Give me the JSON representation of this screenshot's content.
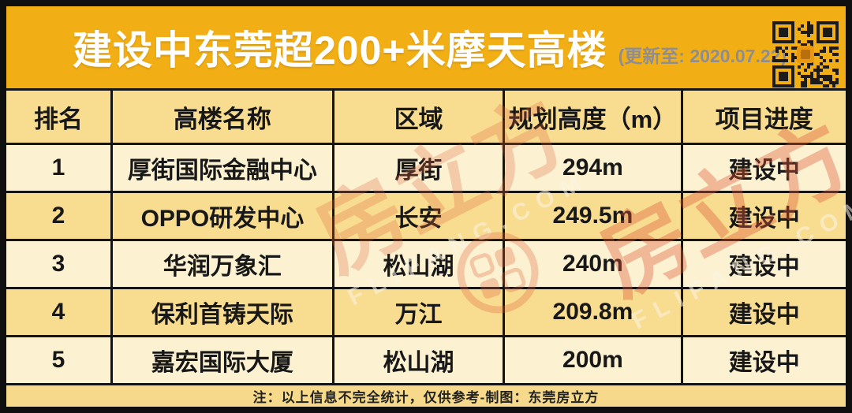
{
  "title": {
    "text": "建设中东莞超200+米摩天高楼",
    "updated": "(更新至: 2020.07.22)"
  },
  "icons": {
    "qr": "qr-code",
    "watermark_logo": "fangcube-circle-logo"
  },
  "table": {
    "headers": [
      "排名",
      "高楼名称",
      "区域",
      "规划高度（m）",
      "项目进度"
    ],
    "rows": [
      {
        "rank": "1",
        "name": "厚街国际金融中心",
        "area": "厚街",
        "height": "294m",
        "status": "建设中"
      },
      {
        "rank": "2",
        "name": "OPPO研发中心",
        "area": "长安",
        "height": "249.5m",
        "status": "建设中"
      },
      {
        "rank": "3",
        "name": "华润万象汇",
        "area": "松山湖",
        "height": "240m",
        "status": "建设中"
      },
      {
        "rank": "4",
        "name": "保利首铸天际",
        "area": "万江",
        "height": "209.8m",
        "status": "建设中"
      },
      {
        "rank": "5",
        "name": "嘉宏国际大厦",
        "area": "松山湖",
        "height": "200m",
        "status": "建设中"
      }
    ]
  },
  "footer": {
    "note": "注：以上信息不完全统计，仅供参考-制图：东莞房立方"
  },
  "watermark": {
    "brand": "房立方",
    "domain_text": "FLIFANG.COM"
  },
  "colors": {
    "title_bar": "#F2AF15",
    "header_row": "#F8DC90",
    "row_odd": "#FCF2D2",
    "row_even": "#F8DC90",
    "note_bar": "#F6D98A",
    "border": "#141414",
    "title_text": "#FFFFFF",
    "updated_text": "#8D8D95",
    "watermark_accent": "#DE623A",
    "qr_center": "#EA9812"
  },
  "chart_data": {
    "type": "table",
    "title": "建设中东莞超200+米摩天高楼",
    "updated": "2020.07.22",
    "columns": [
      "排名",
      "高楼名称",
      "区域",
      "规划高度（m）",
      "项目进度"
    ],
    "rows": [
      [
        "1",
        "厚街国际金融中心",
        "厚街",
        "294m",
        "建设中"
      ],
      [
        "2",
        "OPPO研发中心",
        "长安",
        "249.5m",
        "建设中"
      ],
      [
        "3",
        "华润万象汇",
        "松山湖",
        "240m",
        "建设中"
      ],
      [
        "4",
        "保利首铸天际",
        "万江",
        "209.8m",
        "建设中"
      ],
      [
        "5",
        "嘉宏国际大厦",
        "松山湖",
        "200m",
        "建设中"
      ]
    ],
    "heights_m": [
      294,
      249.5,
      240,
      209.8,
      200
    ]
  }
}
